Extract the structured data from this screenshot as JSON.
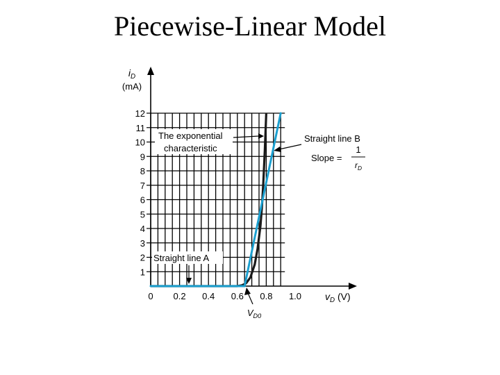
{
  "slide": {
    "title": "Piecewise-Linear Model"
  },
  "colors": {
    "grid": "#000000",
    "exponential": "#1a1a1a",
    "straight_lines": "#1ca0d0",
    "text": "#000000"
  },
  "chart_data": {
    "type": "line",
    "ylabel_top": "i",
    "ylabel_sub": "D",
    "yunit": "(mA)",
    "xlabel": "v",
    "xlabel_sub": "D",
    "xunit": "(V)",
    "xlim": [
      0,
      1.4
    ],
    "ylim": [
      0,
      12
    ],
    "x_ticks": [
      {
        "value": 0,
        "label": "0"
      },
      {
        "value": 0.2,
        "label": "0.2"
      },
      {
        "value": 0.4,
        "label": "0.4"
      },
      {
        "value": 0.6,
        "label": "0.6"
      },
      {
        "value": 0.8,
        "label": "0.8"
      },
      {
        "value": 1.0,
        "label": "1.0"
      }
    ],
    "y_ticks": [
      1,
      2,
      3,
      4,
      5,
      6,
      7,
      8,
      9,
      10,
      11,
      12
    ],
    "series": [
      {
        "id": "exponential",
        "x": [
          0,
          0.6,
          0.63,
          0.66,
          0.69,
          0.72,
          0.74,
          0.76,
          0.77,
          0.78,
          0.79,
          0.8
        ],
        "y": [
          0,
          0,
          0.05,
          0.2,
          0.6,
          1.5,
          2.6,
          4.2,
          5.5,
          7.2,
          9.4,
          12
        ]
      },
      {
        "id": "straight-line-A",
        "x": [
          0,
          0.65
        ],
        "y": [
          0,
          0
        ]
      },
      {
        "id": "straight-line-B",
        "x": [
          0.65,
          0.9
        ],
        "y": [
          0,
          12
        ]
      }
    ],
    "annotations": {
      "exponential_line1": "The exponential",
      "exponential_line2": "characteristic",
      "line_b_title": "Straight line B",
      "slope_label": "Slope =",
      "slope_num": "1",
      "slope_den_r": "r",
      "slope_den_sub": "D",
      "line_a": "Straight line A",
      "vd0": "V",
      "vd0_sub": "D0"
    }
  }
}
